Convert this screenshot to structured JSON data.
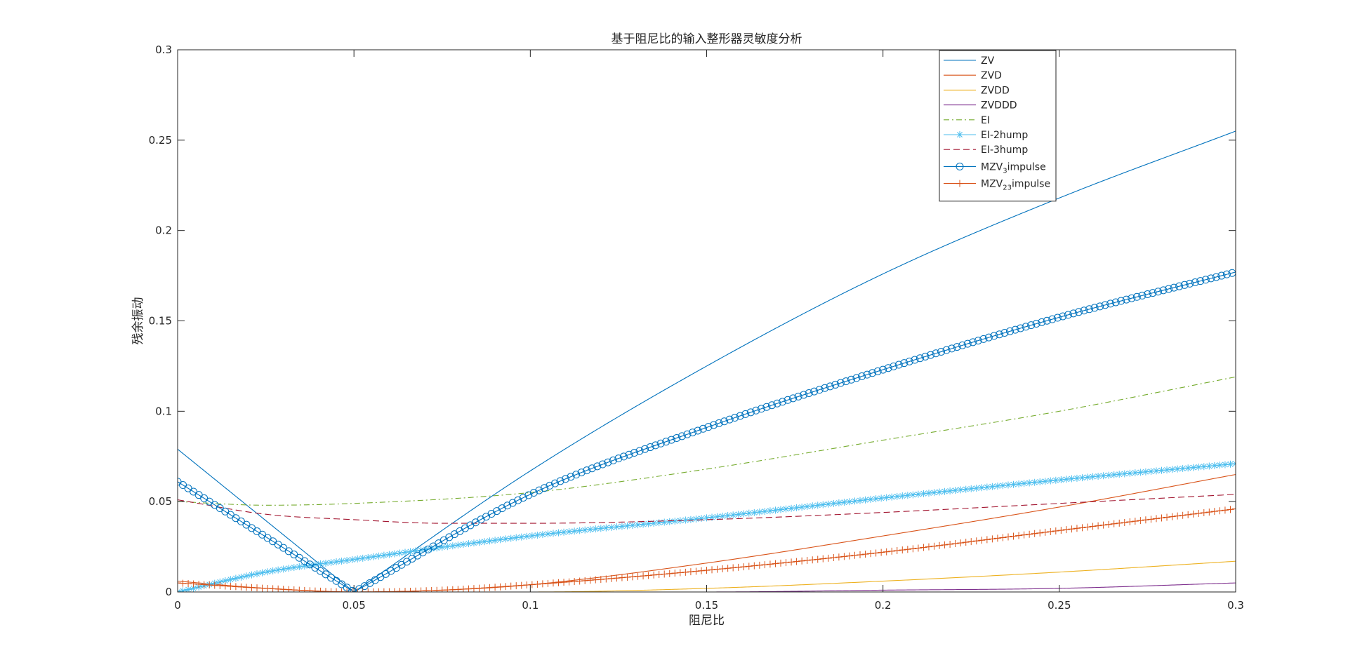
{
  "chart_data": {
    "type": "line",
    "title": "基于阻尼比的输入整形器灵敏度分析",
    "xlabel": "阻尼比",
    "ylabel": "残余振动",
    "xlim": [
      0,
      0.3
    ],
    "ylim": [
      0,
      0.3
    ],
    "xticks": [
      0,
      0.05,
      0.1,
      0.15,
      0.2,
      0.25,
      0.3
    ],
    "xtick_labels": [
      "0",
      "0.05",
      "0.1",
      "0.15",
      "0.2",
      "0.25",
      "0.3"
    ],
    "yticks": [
      0,
      0.05,
      0.1,
      0.15,
      0.2,
      0.25,
      0.3
    ],
    "ytick_labels": [
      "0",
      "0.05",
      "0.1",
      "0.15",
      "0.2",
      "0.25",
      "0.3"
    ],
    "grid": false,
    "legend_position": "top-right",
    "series": [
      {
        "name": "ZV",
        "color": "#0072BD",
        "style": "solid",
        "marker": "none",
        "x": [
          0,
          0.05,
          0.1,
          0.15,
          0.2,
          0.25,
          0.3
        ],
        "y": [
          0.079,
          0.0,
          0.067,
          0.125,
          0.176,
          0.218,
          0.255
        ]
      },
      {
        "name": "ZVD",
        "color": "#D95319",
        "style": "solid",
        "marker": "none",
        "x": [
          0,
          0.025,
          0.05,
          0.075,
          0.1,
          0.15,
          0.2,
          0.25,
          0.3
        ],
        "y": [
          0.006,
          0.002,
          0.0,
          0.001,
          0.004,
          0.016,
          0.031,
          0.047,
          0.065
        ]
      },
      {
        "name": "ZVDD",
        "color": "#EDB120",
        "style": "solid",
        "marker": "none",
        "x": [
          0,
          0.05,
          0.1,
          0.15,
          0.2,
          0.25,
          0.3
        ],
        "y": [
          0.0,
          0.0,
          0.0,
          0.002,
          0.006,
          0.011,
          0.017
        ]
      },
      {
        "name": "ZVDDD",
        "color": "#7E2F8E",
        "style": "solid",
        "marker": "none",
        "x": [
          0,
          0.05,
          0.1,
          0.15,
          0.2,
          0.25,
          0.3
        ],
        "y": [
          0.0,
          0.0,
          0.0,
          0.0,
          0.001,
          0.002,
          0.005
        ]
      },
      {
        "name": "EI",
        "color": "#77AC30",
        "style": "dashdot",
        "marker": "none",
        "x": [
          0,
          0.025,
          0.05,
          0.1,
          0.15,
          0.2,
          0.25,
          0.3
        ],
        "y": [
          0.05,
          0.048,
          0.049,
          0.055,
          0.068,
          0.084,
          0.1,
          0.119
        ]
      },
      {
        "name": "EI-2hump",
        "color": "#4DBEEE",
        "style": "solid",
        "marker": "asterisk",
        "x": [
          0,
          0.025,
          0.05,
          0.1,
          0.15,
          0.2,
          0.25,
          0.3
        ],
        "y": [
          0.0,
          0.011,
          0.018,
          0.031,
          0.041,
          0.052,
          0.062,
          0.071
        ]
      },
      {
        "name": "EI-3hump",
        "color": "#A2142F",
        "style": "dashed",
        "marker": "none",
        "x": [
          0,
          0.025,
          0.05,
          0.075,
          0.1,
          0.15,
          0.2,
          0.25,
          0.3
        ],
        "y": [
          0.051,
          0.043,
          0.04,
          0.038,
          0.038,
          0.04,
          0.044,
          0.049,
          0.054
        ]
      },
      {
        "name": "MZV3impulse",
        "label_main": "MZV",
        "label_sub": "3",
        "label_rest": "impulse",
        "color": "#0072BD",
        "style": "solid",
        "marker": "circle",
        "x": [
          0,
          0.05,
          0.1,
          0.15,
          0.2,
          0.25,
          0.3
        ],
        "y": [
          0.061,
          0.0,
          0.054,
          0.091,
          0.123,
          0.152,
          0.177
        ]
      },
      {
        "name": "MZV23impulse",
        "label_main": "MZV",
        "label_sub": "23",
        "label_rest": "impulse",
        "color": "#D95319",
        "style": "solid",
        "marker": "plus",
        "x": [
          0,
          0.025,
          0.05,
          0.075,
          0.1,
          0.15,
          0.2,
          0.25,
          0.3
        ],
        "y": [
          0.005,
          0.002,
          0.0,
          0.001,
          0.004,
          0.012,
          0.022,
          0.034,
          0.046
        ]
      }
    ]
  }
}
